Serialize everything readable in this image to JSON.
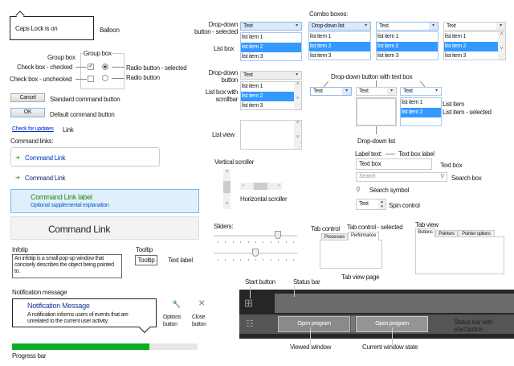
{
  "balloon": {
    "text": "Caps Lock is on",
    "label": "Balloon"
  },
  "group": {
    "title": "Group box",
    "label": "Group box",
    "cb_checked": "Check box - checked",
    "cb_unchecked": "Check box - unchecked",
    "radio_selected": "Radio button - selected",
    "radio": "Radio button"
  },
  "buttons": {
    "cancel": "Cancel",
    "cancel_label": "Standard command button",
    "ok": "OK",
    "ok_label": "Default command button"
  },
  "link": {
    "text": "Check for updates",
    "label": "Link"
  },
  "command_links": {
    "heading": "Command links:",
    "link1": "Command Link",
    "link2": "Command Link",
    "label": "Command Link label",
    "explanation": "Optional supplemental explanation",
    "big": "Command Link"
  },
  "infotip": {
    "label": "Infotip",
    "text": "An infotip is a small pop-up window that concisely describes the object being pointed to."
  },
  "tooltip": {
    "label": "Tooltip",
    "text": "Tooltip",
    "text_label": "Text label"
  },
  "notification": {
    "label": "Notification message",
    "title": "Notification Message",
    "text": "A notification informs users of events that are unrelated to the current user activity.",
    "options": "Options button",
    "close": "Close button"
  },
  "progress": {
    "label": "Progress bar",
    "value": 74,
    "color": "#06b025"
  },
  "dropdowns": {
    "selected_label": "Drop-down button - selected",
    "list_box_label": "List box",
    "text": "Text",
    "items": [
      "list item 1",
      "list item 2",
      "list item 3"
    ],
    "combo_heading": "Combo boxes:",
    "combo1": "Drop-down list",
    "button_label": "Drop-down button",
    "scroll_list_label": "List box with scrollbar",
    "list_view_label": "List view",
    "with_textbox_label": "Drop-down button with text box",
    "dropdown_list_label": "Drop-down list",
    "list_item": "List item",
    "list_item_selected": "List item - selected"
  },
  "textbox": {
    "label_text": "Label text:",
    "label_caption": "Text box label",
    "value": "Text box",
    "caption": "Text box",
    "search_placeholder": "Search",
    "search_caption": "Search box",
    "search_symbol": "Search symbol",
    "spin_value": "Text",
    "spin_caption": "Spin control"
  },
  "scrollers": {
    "vertical": "Vertical scroller",
    "horizontal": "Horizontal scroller"
  },
  "sliders": {
    "label": "Sliders:",
    "values": [
      77,
      50
    ]
  },
  "tabs": {
    "control": "Tab control",
    "selected": "Tab control - selected",
    "tab1": "Processes",
    "tab2": "Performance",
    "page": "Tab view page",
    "view": "Tab view",
    "v1": "Buttons",
    "v2": "Pointers",
    "v3": "Pointer options"
  },
  "taskbar": {
    "start": "Start button",
    "status": "Status bar",
    "with_start": "Status bar with start button",
    "program1": "Open program",
    "program2": "Open program",
    "viewed": "Viewed window",
    "current": "Current window state"
  }
}
